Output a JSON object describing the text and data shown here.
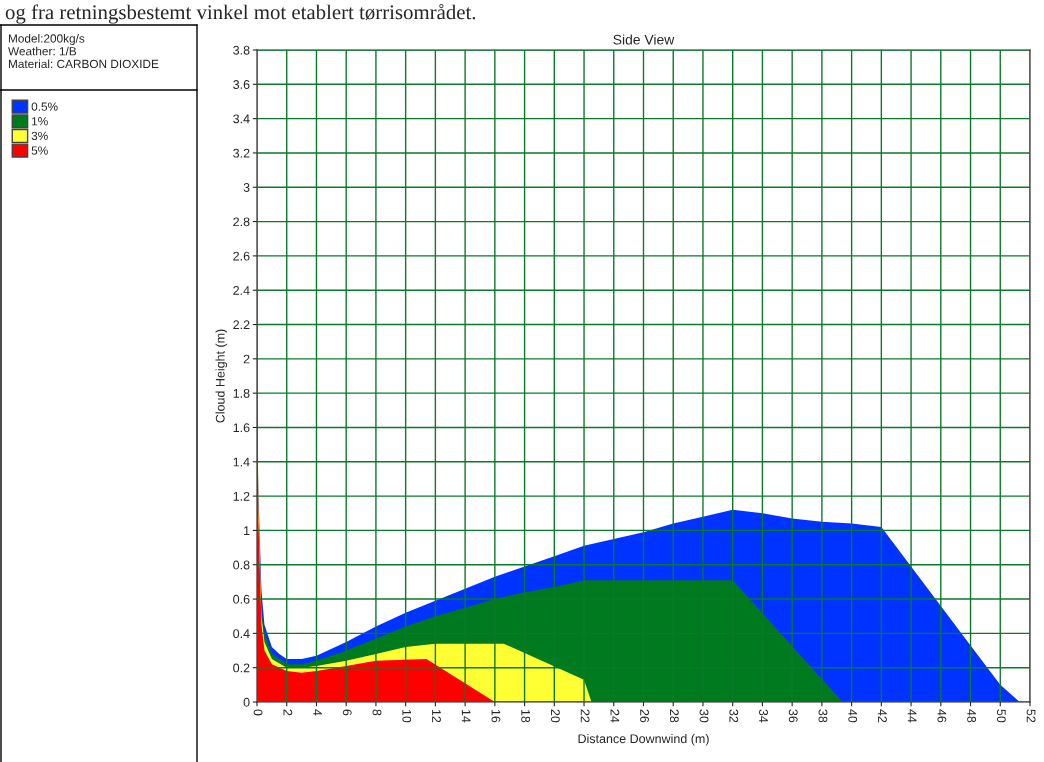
{
  "chart_data": {
    "type": "area",
    "title": "Side View",
    "xlabel": "Distance Downwind (m)",
    "ylabel": "Cloud Height (m)",
    "annotations": [
      "og fra retningsbestemt vinkel mot etablert tørrisområdet.",
      "Model:200kg/s",
      "Weather: 1/B",
      "Material: CARBON DIOXIDE"
    ],
    "series": [
      {
        "name": "0.5%",
        "color": "#0033ff",
        "x": [
          0,
          0.05,
          0.1,
          0.3,
          0.5,
          1,
          1.5,
          2,
          3,
          4,
          6,
          8,
          10,
          12,
          14,
          16,
          18,
          20,
          22,
          24,
          26,
          28,
          30,
          32,
          34,
          36,
          38,
          40,
          42,
          44,
          46,
          48,
          50,
          51.3
        ],
        "values": [
          2.6,
          1.45,
          1.2,
          0.65,
          0.45,
          0.32,
          0.28,
          0.25,
          0.25,
          0.27,
          0.35,
          0.44,
          0.52,
          0.59,
          0.66,
          0.73,
          0.79,
          0.85,
          0.91,
          0.95,
          0.99,
          1.04,
          1.08,
          1.12,
          1.1,
          1.07,
          1.05,
          1.04,
          1.02,
          0.79,
          0.56,
          0.33,
          0.1,
          0
        ]
      },
      {
        "name": "1%",
        "color": "#007a1e",
        "x": [
          0,
          0.1,
          0.2,
          0.5,
          1,
          2,
          3,
          4,
          6,
          8,
          10,
          12,
          14,
          16,
          18,
          20,
          22,
          32,
          39.4
        ],
        "values": [
          1.35,
          1.0,
          0.6,
          0.4,
          0.28,
          0.22,
          0.22,
          0.24,
          0.3,
          0.37,
          0.44,
          0.5,
          0.55,
          0.6,
          0.64,
          0.67,
          0.71,
          0.71,
          0
        ]
      },
      {
        "name": "3%",
        "color": "#ffff33",
        "x": [
          0,
          0.1,
          0.3,
          0.5,
          1,
          2,
          3,
          4,
          6,
          8,
          10,
          12,
          16.6,
          22,
          22.5
        ],
        "values": [
          2.1,
          1.15,
          0.5,
          0.35,
          0.25,
          0.2,
          0.2,
          0.21,
          0.24,
          0.28,
          0.32,
          0.34,
          0.34,
          0.13,
          0
        ]
      },
      {
        "name": "5%",
        "color": "#ff0000",
        "x": [
          0,
          0.1,
          0.3,
          0.5,
          1,
          2,
          3,
          4,
          6,
          8,
          11.4,
          16
        ],
        "values": [
          1.9,
          1.05,
          0.45,
          0.3,
          0.22,
          0.18,
          0.17,
          0.18,
          0.21,
          0.24,
          0.25,
          0
        ]
      }
    ],
    "xlim": [
      0,
      52
    ],
    "xticks": [
      0,
      2,
      4,
      6,
      8,
      10,
      12,
      14,
      16,
      18,
      20,
      22,
      24,
      26,
      28,
      30,
      32,
      34,
      36,
      38,
      40,
      42,
      44,
      46,
      48,
      50,
      52
    ],
    "ylim": [
      0,
      3.8
    ],
    "yticks": [
      0,
      0.2,
      0.4,
      0.6,
      0.8,
      1,
      1.2,
      1.4,
      1.6,
      1.8,
      2,
      2.2,
      2.4,
      2.6,
      2.8,
      3,
      3.2,
      3.4,
      3.6,
      3.8
    ],
    "grid": true,
    "legend": "left"
  }
}
